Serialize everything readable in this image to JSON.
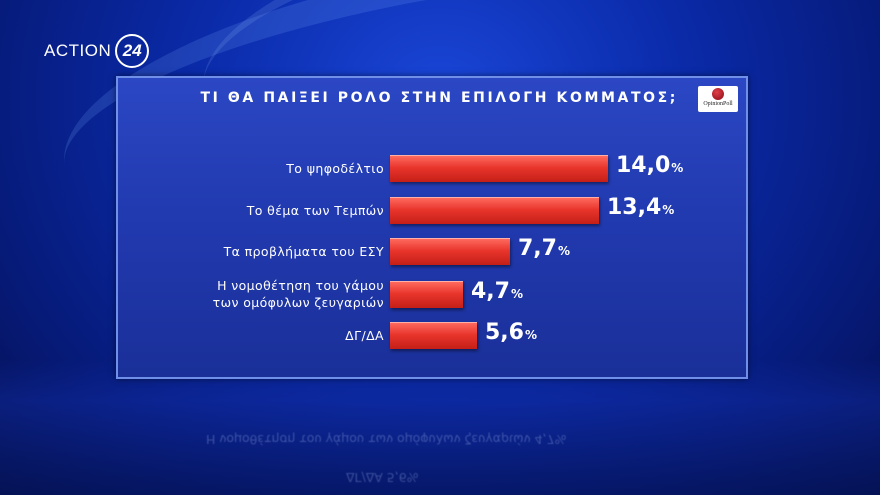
{
  "channel": {
    "word": "ACTION",
    "number": "24"
  },
  "poll_source": "OpinionPoll",
  "colors": {
    "bar": "#e8352c",
    "panel": "#213ab0",
    "text": "#ffffff"
  },
  "chart_data": {
    "type": "bar",
    "orientation": "horizontal",
    "title": "ΤΙ ΘΑ ΠΑΙΞΕΙ ΡΟΛΟ ΣΤΗΝ ΕΠΙΛΟΓΗ ΚΟΜΜΑΤΟΣ;",
    "categories": [
      [
        "Το ψηφοδέλτιο"
      ],
      [
        "Το θέμα των Τεμπών"
      ],
      [
        "Τα προβλήματα του ΕΣΥ"
      ],
      [
        "Η νομοθέτηση του γάμου",
        "των ομόφυλων ζευγαριών"
      ],
      [
        "ΔΓ/ΔΑ"
      ]
    ],
    "values": [
      14.0,
      13.4,
      7.7,
      4.7,
      5.6
    ],
    "value_labels": [
      "14,0",
      "13,4",
      "7,7",
      "4,7",
      "5,6"
    ],
    "unit": "%",
    "xlim": [
      0,
      14.0
    ]
  }
}
